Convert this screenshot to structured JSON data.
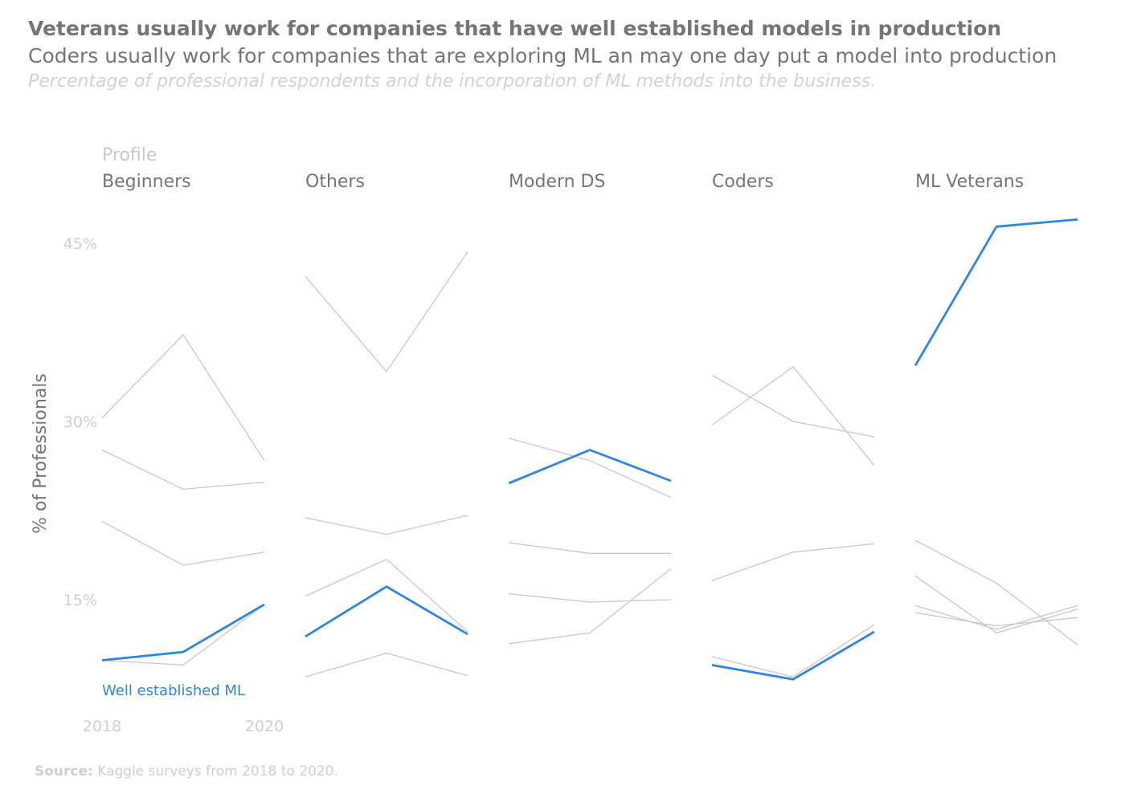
{
  "title": "Veterans usually work for companies that have well established models in production",
  "subtitle": "Coders usually work for companies that are exploring ML an may one day put a model into production",
  "caption": "Percentage of professional respondents and the incorporation of ML methods into the business.",
  "source": {
    "label": "Source:",
    "text": " Kaggle surveys from 2018 to 2020."
  },
  "colors": {
    "highlight": "#2e86de",
    "muted": "#c8c8c8"
  },
  "chart_data": {
    "type": "line",
    "facet_label": "Profile",
    "ylabel": "% of Professionals",
    "y_ticks": [
      15,
      30,
      45
    ],
    "y_tick_labels": [
      "15%",
      "30%",
      "45%"
    ],
    "ylim": [
      4,
      50
    ],
    "x": [
      2018,
      2019,
      2020
    ],
    "x_tick_labels": [
      "2018",
      "2020"
    ],
    "highlight_label": "Well established ML",
    "facets": [
      {
        "name": "Beginners",
        "series": [
          {
            "highlight": false,
            "values": [
              30.3,
              37.3,
              26.7
            ]
          },
          {
            "highlight": false,
            "values": [
              27.6,
              24.3,
              24.9
            ]
          },
          {
            "highlight": false,
            "values": [
              21.6,
              17.9,
              19.0
            ]
          },
          {
            "highlight": false,
            "values": [
              9.9,
              9.5,
              14.6
            ]
          },
          {
            "highlight": true,
            "values": [
              9.9,
              10.6,
              14.6
            ]
          }
        ]
      },
      {
        "name": "Others",
        "series": [
          {
            "highlight": false,
            "values": [
              42.2,
              34.2,
              44.3
            ]
          },
          {
            "highlight": false,
            "values": [
              21.9,
              20.5,
              22.1
            ]
          },
          {
            "highlight": false,
            "values": [
              15.3,
              18.4,
              12.3
            ]
          },
          {
            "highlight": false,
            "values": [
              8.5,
              10.5,
              8.6
            ]
          },
          {
            "highlight": true,
            "values": [
              11.9,
              16.1,
              12.1
            ]
          }
        ]
      },
      {
        "name": "Modern DS",
        "series": [
          {
            "highlight": false,
            "values": [
              28.6,
              26.7,
              23.6
            ]
          },
          {
            "highlight": false,
            "values": [
              19.8,
              18.9,
              18.9
            ]
          },
          {
            "highlight": false,
            "values": [
              15.5,
              14.8,
              15.0
            ]
          },
          {
            "highlight": false,
            "values": [
              11.3,
              12.2,
              17.6
            ]
          },
          {
            "highlight": true,
            "values": [
              24.8,
              27.6,
              25.0
            ]
          }
        ]
      },
      {
        "name": "Coders",
        "series": [
          {
            "highlight": false,
            "values": [
              33.9,
              30.0,
              28.7
            ]
          },
          {
            "highlight": false,
            "values": [
              29.7,
              34.6,
              26.3
            ]
          },
          {
            "highlight": false,
            "values": [
              16.6,
              19.0,
              19.7
            ]
          },
          {
            "highlight": false,
            "values": [
              10.2,
              8.5,
              12.9
            ]
          },
          {
            "highlight": true,
            "values": [
              9.5,
              8.3,
              12.3
            ]
          }
        ]
      },
      {
        "name": "ML Veterans",
        "series": [
          {
            "highlight": false,
            "values": [
              20.0,
              16.4,
              11.2
            ]
          },
          {
            "highlight": false,
            "values": [
              17.0,
              12.2,
              14.2
            ]
          },
          {
            "highlight": false,
            "values": [
              14.5,
              12.5,
              14.5
            ]
          },
          {
            "highlight": false,
            "values": [
              13.9,
              12.8,
              13.5
            ]
          },
          {
            "highlight": true,
            "values": [
              34.7,
              46.4,
              47.0
            ]
          }
        ]
      }
    ]
  }
}
